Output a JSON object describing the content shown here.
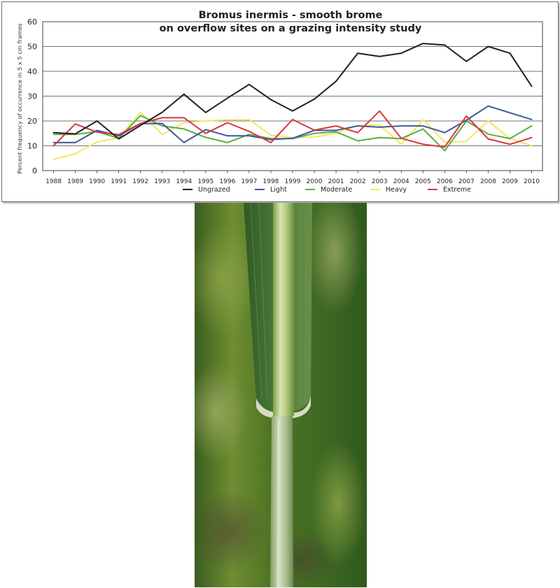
{
  "chart_data": {
    "type": "line",
    "title_lines": [
      "Bromus inermis  -  smooth brome",
      "on overflow sites on a grazing intensity study"
    ],
    "xlabel": "",
    "ylabel": "Percent frequency of occurrence in 5 x 5 cm frames",
    "ylim": [
      0,
      60
    ],
    "yticks": [
      0,
      10,
      20,
      30,
      40,
      50,
      60
    ],
    "x": [
      "1988",
      "1989",
      "1990",
      "1991",
      "1992",
      "1993",
      "1994",
      "1995",
      "1996",
      "1997",
      "1998",
      "1999",
      "2000",
      "2001",
      "2002",
      "2003",
      "2004",
      "2005",
      "2006",
      "2007",
      "2008",
      "2009",
      "2010"
    ],
    "grid": "horizontal",
    "legend_position": "bottom",
    "series": [
      {
        "name": "Ungrazed",
        "color": "#231f20",
        "values": [
          15.3,
          14.8,
          20.0,
          12.8,
          18.2,
          23.5,
          30.8,
          23.4,
          29.2,
          34.7,
          28.6,
          24.0,
          28.8,
          36.0,
          47.3,
          46.0,
          47.3,
          51.2,
          50.6,
          44.0,
          50.0,
          47.3,
          34.0
        ]
      },
      {
        "name": "Light",
        "color": "#3a5a9a",
        "values": [
          11.3,
          11.3,
          16.2,
          14.0,
          18.9,
          19.0,
          11.3,
          16.5,
          14.0,
          14.0,
          12.5,
          13.0,
          16.2,
          16.2,
          18.0,
          17.5,
          18.0,
          18.0,
          15.3,
          20.3,
          26.0,
          23.3,
          20.6
        ]
      },
      {
        "name": "Moderate",
        "color": "#5cab45",
        "values": [
          14.6,
          14.6,
          15.7,
          13.0,
          22.2,
          18.0,
          16.8,
          13.4,
          11.3,
          14.6,
          12.9,
          12.9,
          15.0,
          15.6,
          12.0,
          13.3,
          12.9,
          16.8,
          8.0,
          20.0,
          14.7,
          12.9,
          18.0
        ]
      },
      {
        "name": "Heavy",
        "color": "#f0e864",
        "values": [
          4.5,
          6.8,
          11.5,
          13.2,
          23.5,
          14.5,
          19.3,
          20.0,
          20.5,
          20.5,
          14.3,
          13.3,
          13.5,
          15.0,
          18.2,
          18.4,
          10.6,
          20.5,
          11.5,
          11.8,
          20.0,
          12.9,
          10.0
        ]
      },
      {
        "name": "Extreme",
        "color": "#d8373d",
        "values": [
          10.0,
          18.8,
          15.5,
          14.5,
          19.0,
          21.3,
          21.3,
          15.0,
          19.3,
          15.8,
          11.3,
          20.6,
          16.3,
          18.0,
          15.3,
          24.0,
          13.0,
          10.6,
          9.5,
          22.0,
          12.8,
          10.6,
          13.3
        ]
      }
    ]
  }
}
